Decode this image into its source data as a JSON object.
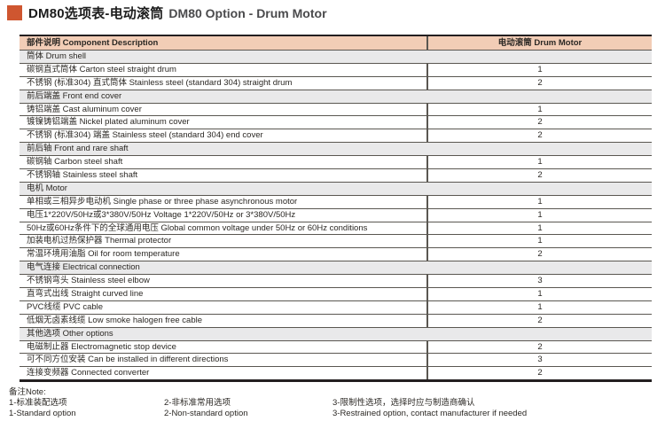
{
  "title": {
    "cn": "DM80选项表-电动滚筒",
    "en": "DM80 Option - Drum Motor"
  },
  "colors": {
    "accent_orange": "#cf5630",
    "header_bg": "#f2cdb6",
    "section_bg": "#e9e9ea",
    "border_dark": "#231f20"
  },
  "table": {
    "header": {
      "left": "部件说明 Component Description",
      "right": "电动滚筒 Drum Motor"
    },
    "rows": [
      {
        "type": "section",
        "label": "筒体 Drum shell"
      },
      {
        "type": "option",
        "label": "碳钢直式筒体 Carton steel straight drum",
        "value": "1"
      },
      {
        "type": "option",
        "label": "不锈钢 (标准304) 直式筒体 Stainless steel (standard 304) straight drum",
        "value": "2"
      },
      {
        "type": "section",
        "label": "前后端盖 Front end cover"
      },
      {
        "type": "option",
        "label": "铸铝端盖 Cast aluminum cover",
        "value": "1"
      },
      {
        "type": "option",
        "label": "镀镍铸铝端盖 Nickel plated aluminum cover",
        "value": "2"
      },
      {
        "type": "option",
        "label": "不锈钢 (标准304) 端盖 Stainless steel (standard 304) end cover",
        "value": "2"
      },
      {
        "type": "section",
        "label": "前后轴 Front and rare shaft"
      },
      {
        "type": "option",
        "label": "碳钢轴 Carbon steel shaft",
        "value": "1"
      },
      {
        "type": "option",
        "label": "不锈钢轴 Stainless steel shaft",
        "value": "2"
      },
      {
        "type": "section",
        "label": "电机 Motor"
      },
      {
        "type": "option",
        "label": "单相或三相异步电动机 Single phase or three phase asynchronous motor",
        "value": "1"
      },
      {
        "type": "option",
        "label": "电压1*220V/50Hz或3*380V/50Hz  Voltage 1*220V/50Hz or 3*380V/50Hz",
        "value": "1"
      },
      {
        "type": "option",
        "label": "50Hz或60Hz条件下的全球通用电压 Global common voltage under 50Hz or 60Hz conditions",
        "value": "1"
      },
      {
        "type": "option",
        "label": "加装电机过热保护器 Thermal protector",
        "value": "1"
      },
      {
        "type": "option",
        "label": "常温环境用油脂 Oil for room temperature",
        "value": "2"
      },
      {
        "type": "section",
        "label": "电气连接 Electrical connection"
      },
      {
        "type": "option",
        "label": "不锈钢弯头 Stainless steel elbow",
        "value": "3"
      },
      {
        "type": "option",
        "label": "直弯式出线 Straight curved line",
        "value": "1"
      },
      {
        "type": "option",
        "label": "PVC线缆 PVC cable",
        "value": "1"
      },
      {
        "type": "option",
        "label": "低烟无卤素线缆 Low smoke halogen free cable",
        "value": "2"
      },
      {
        "type": "section",
        "label": "其他选项 Other options"
      },
      {
        "type": "option",
        "label": "电磁制止器 Electromagnetic stop device",
        "value": "2"
      },
      {
        "type": "option",
        "label": "可不同方位安装 Can be installed in different directions",
        "value": "3"
      },
      {
        "type": "option",
        "label": "连接变频器 Connected converter",
        "value": "2"
      }
    ]
  },
  "notes": {
    "title": "备注Note:",
    "columns": [
      {
        "cn": "1-标准装配选项",
        "en": "1-Standard option"
      },
      {
        "cn": "2-非标准常用选项",
        "en": "2-Non-standard option"
      },
      {
        "cn": "3-限制性选项，选择时应与制造商确认",
        "en": "3-Restrained option, contact manufacturer if needed"
      }
    ]
  }
}
